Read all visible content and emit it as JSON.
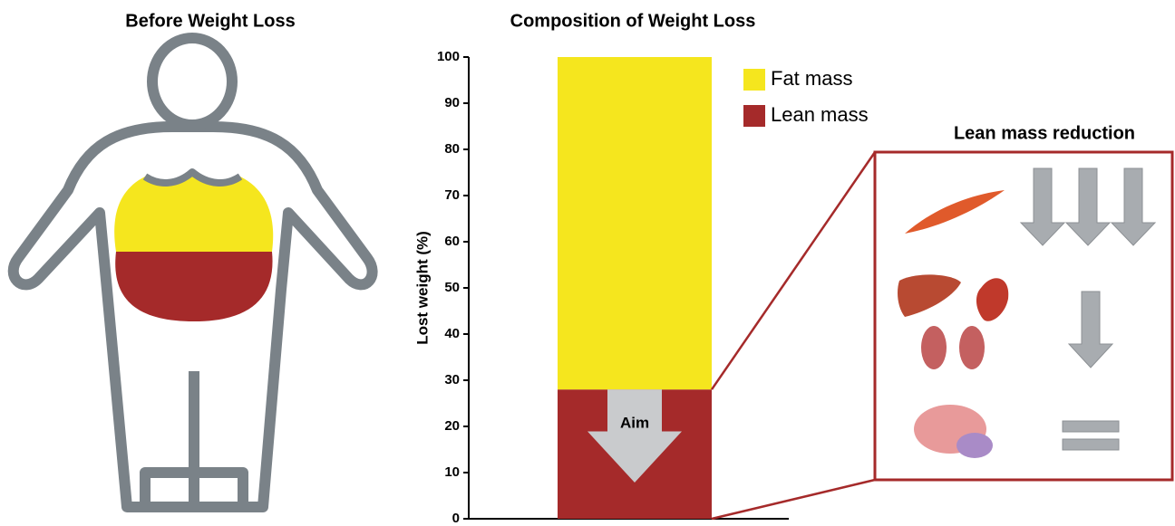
{
  "figure": {
    "left_title": "Before Weight Loss",
    "right_title": "Lean mass reduction"
  },
  "chart_data": {
    "type": "bar",
    "title": "Composition of Weight Loss",
    "ylabel": "Lost weight (%)",
    "categories": [
      null
    ],
    "series": [
      {
        "name": "Lean mass",
        "color": "#a52a2a",
        "values": [
          28
        ]
      },
      {
        "name": "Fat mass",
        "color": "#f5e61e",
        "values": [
          72
        ]
      }
    ],
    "stacked": true,
    "annotation": "Aim",
    "ylim": [
      0,
      100
    ],
    "yticks": [
      0,
      10,
      20,
      30,
      40,
      50,
      60,
      70,
      80,
      90,
      100
    ],
    "grid": false
  }
}
